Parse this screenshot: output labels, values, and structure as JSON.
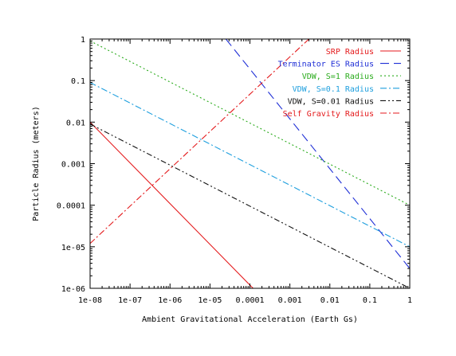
{
  "chart_data": {
    "type": "line",
    "xlabel": "Ambient Gravitational Acceleration (Earth Gs)",
    "ylabel": "Particle Radius (meters)",
    "xscale": "log",
    "yscale": "log",
    "xlim": [
      1e-08,
      1
    ],
    "ylim": [
      1e-06,
      1
    ],
    "grid": false,
    "legend_position": "top-right",
    "x_ticks": [
      {
        "value": 1e-08,
        "label": "1e-08"
      },
      {
        "value": 1e-07,
        "label": "1e-07"
      },
      {
        "value": 1e-06,
        "label": "1e-06"
      },
      {
        "value": 1e-05,
        "label": "1e-05"
      },
      {
        "value": 0.0001,
        "label": "0.0001"
      },
      {
        "value": 0.001,
        "label": "0.001"
      },
      {
        "value": 0.01,
        "label": "0.01"
      },
      {
        "value": 0.1,
        "label": "0.1"
      },
      {
        "value": 1,
        "label": "1"
      }
    ],
    "y_ticks": [
      {
        "value": 1e-06,
        "label": "1e-06"
      },
      {
        "value": 1e-05,
        "label": "1e-05"
      },
      {
        "value": 0.0001,
        "label": "0.0001"
      },
      {
        "value": 0.001,
        "label": "0.001"
      },
      {
        "value": 0.01,
        "label": "0.01"
      },
      {
        "value": 0.1,
        "label": "0.1"
      },
      {
        "value": 1,
        "label": "1"
      }
    ],
    "series": [
      {
        "name": "SRP Radius",
        "color": "#e41a1c",
        "dash": "solid",
        "x": [
          1e-08,
          0.00012
        ],
        "y": [
          0.01,
          1e-06
        ]
      },
      {
        "name": "Terminator ES Radius",
        "color": "#1f2fd6",
        "dash": "long-dash",
        "x": [
          2.5e-05,
          1
        ],
        "y": [
          1,
          3e-06
        ]
      },
      {
        "name": "VDW, S=1 Radius",
        "color": "#2aab1c",
        "dash": "dot",
        "x": [
          1e-08,
          1
        ],
        "y": [
          0.9,
          0.0001
        ]
      },
      {
        "name": "VDW, S=0.1 Radius",
        "color": "#1e9fde",
        "dash": "dash-dot",
        "x": [
          1e-08,
          1
        ],
        "y": [
          0.09,
          1e-05
        ]
      },
      {
        "name": "VDW, S=0.01 Radius",
        "color": "#111111",
        "dash": "dash-dot-dot",
        "x": [
          1e-08,
          1
        ],
        "y": [
          0.009,
          1e-06
        ]
      },
      {
        "name": "Self Gravity Radius",
        "color": "#e41a1c",
        "dash": "dash-dot",
        "x": [
          1e-08,
          0.003
        ],
        "y": [
          1.2e-05,
          1
        ]
      }
    ]
  }
}
